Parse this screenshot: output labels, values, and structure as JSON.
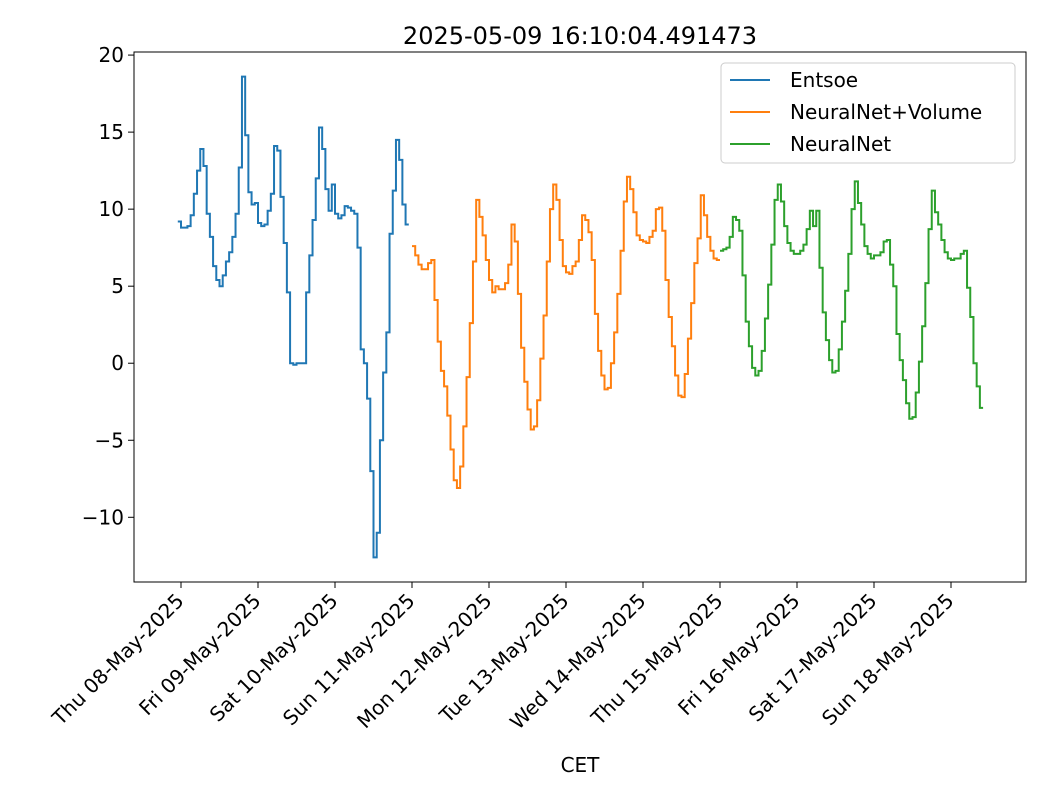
{
  "chart_data": {
    "type": "line",
    "title": "2025-05-09 16:10:04.491473",
    "xlabel": "CET",
    "ylabel": "",
    "ylim": [
      -14.2,
      20.2
    ],
    "yticks": [
      20,
      15,
      10,
      5,
      0,
      -5,
      -10
    ],
    "ytick_labels": [
      "20",
      "15",
      "10",
      "5",
      "0",
      "−5",
      "−10"
    ],
    "xlim_days": [
      -0.6,
      11.0
    ],
    "xticks_days": [
      0,
      1,
      2,
      3,
      4,
      5,
      6,
      7,
      8,
      9,
      10
    ],
    "xtick_labels": [
      "Thu 08-May-2025",
      "Fri 09-May-2025",
      "Sat 10-May-2025",
      "Sun 11-May-2025",
      "Mon 12-May-2025",
      "Tue 13-May-2025",
      "Wed 14-May-2025",
      "Thu 15-May-2025",
      "Fri 16-May-2025",
      "Sat 17-May-2025",
      "Sun 18-May-2025"
    ],
    "grid": false,
    "legend_position": "top-right",
    "series": [
      {
        "name": "Entsoe",
        "color": "#1f77b4",
        "start": "2025-05-07 23:00",
        "step_hours": 1,
        "values": [
          9.2,
          8.8,
          8.8,
          8.9,
          9.6,
          11.0,
          12.5,
          13.9,
          12.8,
          9.7,
          8.2,
          6.3,
          5.4,
          5.0,
          5.7,
          6.6,
          7.2,
          8.2,
          9.7,
          12.7,
          18.6,
          14.8,
          11.1,
          10.3,
          10.4,
          9.1,
          8.9,
          9.0,
          9.9,
          11.0,
          14.1,
          13.8,
          10.8,
          7.8,
          4.6,
          0.0,
          -0.1,
          0.0,
          0.0,
          0.0,
          4.6,
          7.0,
          9.3,
          12.0,
          15.3,
          13.9,
          11.3,
          9.9,
          11.6,
          9.7,
          9.4,
          9.6,
          10.2,
          10.1,
          9.9,
          9.7,
          7.5,
          0.9,
          0.0,
          -2.3,
          -7.0,
          -12.6,
          -11.0,
          -5.0,
          -0.6,
          2.0,
          8.4,
          11.2,
          14.5,
          13.2,
          10.3,
          9.0
        ]
      },
      {
        "name": "NeuralNet+Volume",
        "color": "#ff7f0e",
        "start": "2025-05-11 00:00",
        "step_hours": 1,
        "values": [
          7.6,
          7.0,
          6.4,
          6.1,
          6.1,
          6.5,
          6.7,
          4.1,
          1.4,
          -0.5,
          -1.5,
          -3.4,
          -5.6,
          -7.6,
          -8.1,
          -6.7,
          -4.1,
          -0.9,
          2.6,
          6.6,
          10.6,
          9.5,
          8.3,
          6.7,
          5.4,
          4.6,
          5.0,
          4.8,
          4.8,
          5.2,
          6.4,
          9.0,
          7.9,
          4.5,
          1.0,
          -1.2,
          -3.0,
          -4.3,
          -4.1,
          -2.4,
          0.3,
          3.1,
          6.6,
          10.0,
          11.6,
          10.6,
          8.0,
          6.3,
          5.9,
          5.8,
          6.3,
          6.6,
          8.0,
          9.6,
          9.3,
          8.5,
          6.7,
          3.2,
          0.8,
          -0.8,
          -1.7,
          -1.6,
          0.0,
          2.0,
          4.5,
          7.3,
          10.5,
          12.1,
          11.3,
          9.8,
          8.3,
          8.0,
          7.9,
          7.8,
          8.2,
          8.6,
          10.0,
          10.1,
          8.6,
          5.4,
          3.0,
          1.1,
          -0.8,
          -2.1,
          -2.2,
          -0.7,
          1.6,
          3.9,
          6.5,
          8.1,
          10.9,
          9.6,
          8.2,
          7.3,
          6.8,
          6.7
        ]
      },
      {
        "name": "NeuralNet",
        "color": "#2ca02c",
        "start": "2025-05-15 00:00",
        "step_hours": 1,
        "values": [
          7.3,
          7.4,
          7.5,
          8.2,
          9.5,
          9.3,
          8.6,
          5.7,
          2.7,
          1.1,
          -0.3,
          -0.8,
          -0.5,
          0.8,
          2.9,
          5.1,
          7.7,
          10.6,
          11.6,
          10.5,
          8.9,
          7.8,
          7.3,
          7.1,
          7.1,
          7.3,
          7.7,
          8.7,
          9.9,
          8.9,
          9.9,
          6.2,
          3.3,
          1.5,
          0.2,
          -0.6,
          -0.5,
          0.9,
          2.7,
          4.7,
          7.1,
          10.0,
          11.8,
          10.4,
          9.0,
          7.6,
          7.1,
          6.8,
          7.0,
          7.0,
          7.2,
          7.9,
          8.0,
          6.4,
          5.0,
          1.9,
          0.2,
          -1.1,
          -2.6,
          -3.6,
          -3.5,
          -1.9,
          0.1,
          2.4,
          5.2,
          8.7,
          11.2,
          9.8,
          9.0,
          8.0,
          7.2,
          6.8,
          6.7,
          6.8,
          6.8,
          7.1,
          7.3,
          4.9,
          3.0,
          0.0,
          -1.5,
          -2.9
        ]
      }
    ]
  }
}
